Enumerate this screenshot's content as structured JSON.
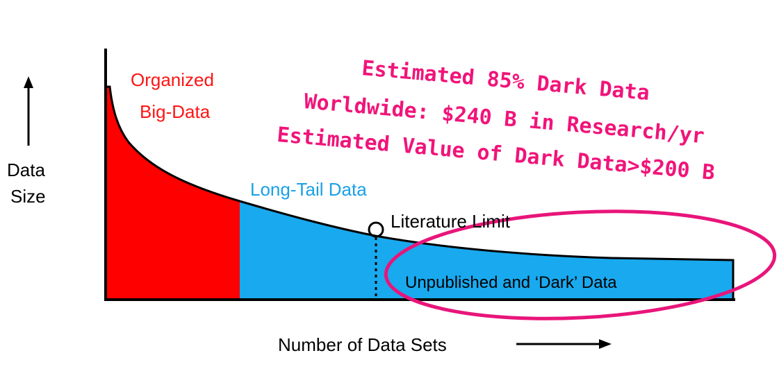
{
  "labels": {
    "organized_line1": "Organized",
    "organized_line2": "Big-Data",
    "long_tail": "Long-Tail Data",
    "literature_limit": "Literature Limit",
    "dark_data": "Unpublished and ‘Dark’ Data",
    "y_axis_line1": "Data",
    "y_axis_line2": "Size",
    "x_axis": "Number of Data Sets"
  },
  "annotation": {
    "line1": "Estimated 85% Dark Data",
    "line2": "Worldwide: $240 B in Research/yr",
    "line3": "Estimated Value of Dark Data>$200 B"
  },
  "colors": {
    "organized": "#ff0000",
    "long_tail": "#19a9ee",
    "annotation": "#f0147a",
    "ellipse": "#e8157a",
    "curve": "#000000"
  }
}
